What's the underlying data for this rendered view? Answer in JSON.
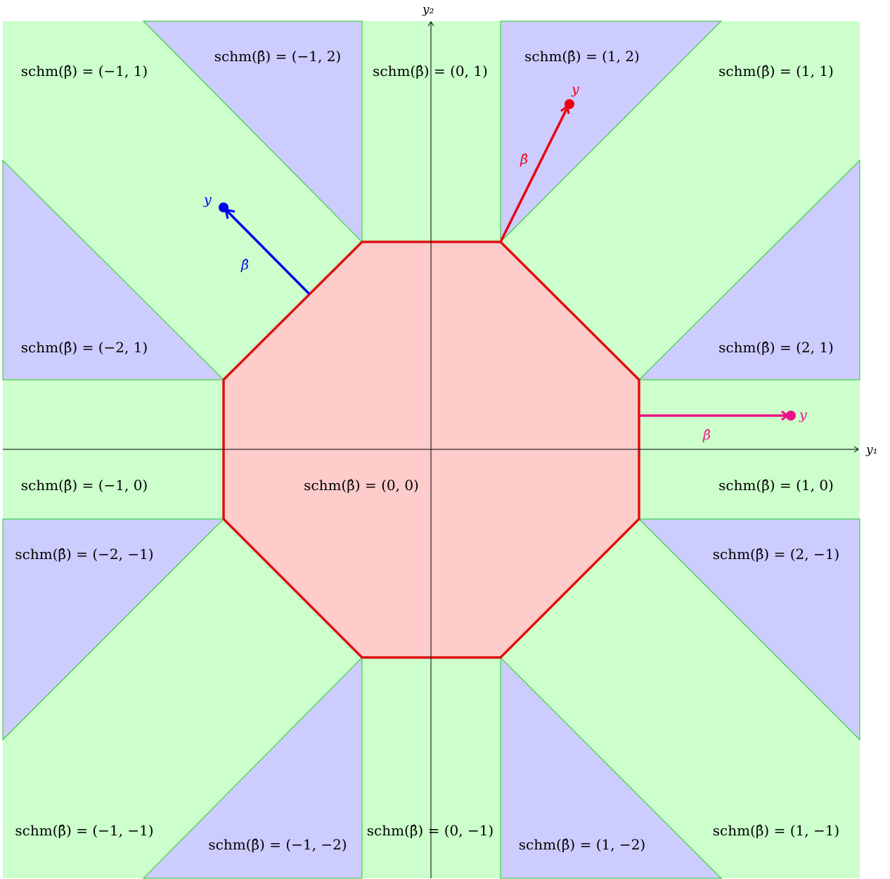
{
  "axes": {
    "x_label": "y₁",
    "y_label": "y₂"
  },
  "colors": {
    "green_region": "#ccffcc",
    "blue_region": "#ccccff",
    "center_region": "#ffcccc",
    "border": "#22cc22",
    "octagon_edge": "#e01010",
    "vector_blue": "#0000ee",
    "vector_red": "#ee0011",
    "vector_magenta": "#ee1188"
  },
  "regions": {
    "r_m1_1": "schm(β̂) = (−1, 1)",
    "r_m1_2": "schm(β̂) = (−1, 2)",
    "r_0_1": "schm(β̂) = (0, 1)",
    "r_1_2": "schm(β̂) = (1, 2)",
    "r_1_1": "schm(β̂) = (1, 1)",
    "r_m2_1": "schm(β̂) = (−2, 1)",
    "r_2_1": "schm(β̂) = (2, 1)",
    "r_m1_0": "schm(β̂) = (−1, 0)",
    "r_0_0": "schm(β̂) = (0, 0)",
    "r_1_0": "schm(β̂) = (1, 0)",
    "r_m2_m1": "schm(β̂) = (−2, −1)",
    "r_2_m1": "schm(β̂) = (2, −1)",
    "r_m1_m1": "schm(β̂) = (−1, −1)",
    "r_m1_m2": "schm(β̂) = (−1, −2)",
    "r_0_m1": "schm(β̂) = (0, −1)",
    "r_1_m2": "schm(β̂) = (1, −2)",
    "r_1_m1": "schm(β̂) = (1, −1)"
  },
  "vectors": {
    "blue": {
      "point_label": "y",
      "vector_label": "β̂"
    },
    "red": {
      "point_label": "y",
      "vector_label": "β̂"
    },
    "magenta": {
      "point_label": "y",
      "vector_label": "β̂"
    }
  }
}
